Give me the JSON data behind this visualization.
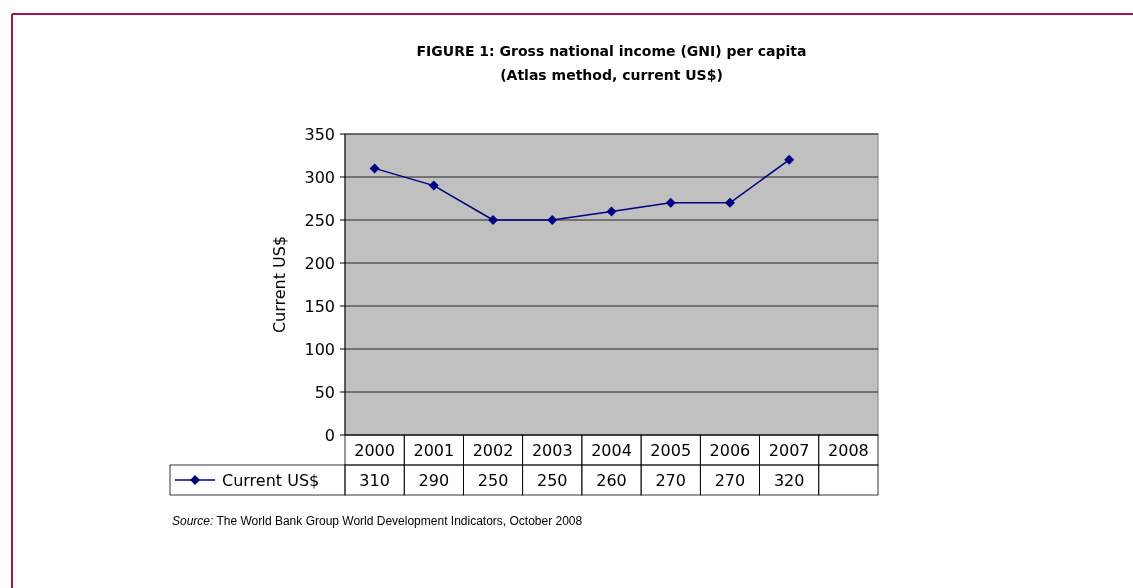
{
  "chart_data": {
    "type": "line",
    "title": "FIGURE 1: Gross national income (GNI) per capita",
    "subtitle": "(Atlas method, current US$)",
    "ylabel": "Current US$",
    "categories": [
      "2000",
      "2001",
      "2002",
      "2003",
      "2004",
      "2005",
      "2006",
      "2007",
      "2008"
    ],
    "series": [
      {
        "name": "Current US$",
        "color": "#000080",
        "values": [
          310,
          290,
          250,
          250,
          260,
          270,
          270,
          320,
          null
        ]
      }
    ],
    "ylim": [
      0,
      350
    ],
    "yticks": [
      0,
      50,
      100,
      150,
      200,
      250,
      300,
      350
    ],
    "grid": "y",
    "marker": "diamond",
    "line_style": "solid",
    "data_labels": true,
    "legend": "bottom left",
    "annotations": [
      "Source: The World Bank Group World Development Indicators, October 2008"
    ]
  }
}
